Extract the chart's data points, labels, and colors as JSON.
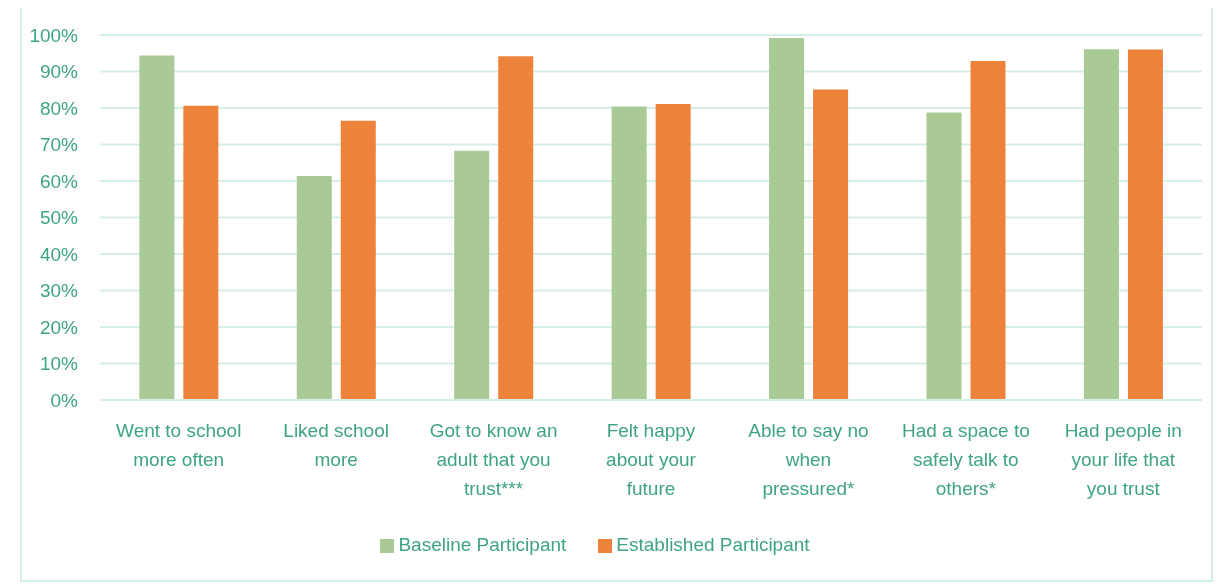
{
  "chart_data": {
    "type": "bar",
    "categories": [
      "Went to school more often",
      "Liked school more",
      "Got to know an adult that you trust***",
      "Felt happy about your future",
      "Able to say no when pressured*",
      "Had a space to safely talk to others*",
      "Had people in your life that you trust"
    ],
    "series": [
      {
        "name": "Baseline Participant",
        "color": "#a9c995",
        "values": [
          94.4,
          61.4,
          68.3,
          80.4,
          99.2,
          78.8,
          96.1
        ]
      },
      {
        "name": "Established Participant",
        "color": "#ed833a",
        "values": [
          80.6,
          76.5,
          94.2,
          81.1,
          85.1,
          92.9,
          96.0
        ]
      }
    ],
    "ylim": [
      0,
      100
    ],
    "yticks": [
      {
        "value": 0,
        "label": "0%"
      },
      {
        "value": 10,
        "label": "10%"
      },
      {
        "value": 20,
        "label": "20%"
      },
      {
        "value": 30,
        "label": "30%"
      },
      {
        "value": 40,
        "label": "40%"
      },
      {
        "value": 50,
        "label": "50%"
      },
      {
        "value": 60,
        "label": "60%"
      },
      {
        "value": 70,
        "label": "70%"
      },
      {
        "value": 80,
        "label": "80%"
      },
      {
        "value": 90,
        "label": "90%"
      },
      {
        "value": 100,
        "label": "100%"
      }
    ],
    "grid": "y",
    "legend": "bottom"
  }
}
